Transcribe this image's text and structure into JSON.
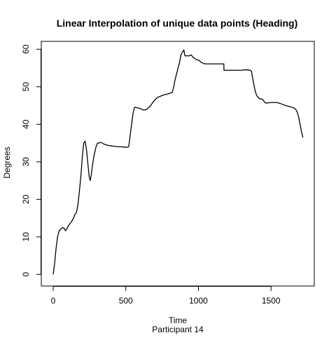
{
  "chart_data": {
    "type": "line",
    "title": "Linear Interpolation of unique data points (Heading)",
    "xlabel": "Time",
    "ylabel": "Degrees",
    "subtitle": "Participant  14",
    "xlim": [
      -82,
      1798
    ],
    "ylim": [
      -3.1,
      62.1
    ],
    "x_ticks": [
      0,
      500,
      1000,
      1500
    ],
    "y_ticks": [
      0,
      10,
      20,
      30,
      40,
      50,
      60
    ],
    "grid": false,
    "legend": "none",
    "line_color": "#000000",
    "series": [
      {
        "x": [
          0,
          10,
          20,
          30,
          40,
          55,
          65,
          75,
          85,
          95,
          105,
          115,
          125,
          140,
          150,
          160,
          170,
          180,
          190,
          200,
          210,
          220,
          230,
          240,
          248,
          255,
          262,
          270,
          278,
          286,
          295,
          305,
          315,
          330,
          345,
          360,
          375,
          390,
          410,
          430,
          450,
          470,
          490,
          510,
          520,
          530,
          540,
          550,
          560,
          570,
          580,
          590,
          600,
          620,
          640,
          660,
          680,
          700,
          720,
          740,
          760,
          780,
          800,
          820,
          830,
          840,
          850,
          860,
          870,
          880,
          890,
          900,
          905,
          910,
          920,
          930,
          940,
          950,
          960,
          975,
          990,
          1005,
          1020,
          1035,
          1050,
          1100,
          1150,
          1175,
          1176,
          1250,
          1300,
          1310,
          1340,
          1355,
          1365,
          1370,
          1380,
          1390,
          1400,
          1410,
          1420,
          1440,
          1450,
          1460,
          1480,
          1500,
          1520,
          1540,
          1560,
          1580,
          1600,
          1620,
          1640,
          1660,
          1670,
          1680,
          1690,
          1700,
          1710,
          1720
        ],
        "y": [
          0,
          3,
          7,
          10,
          11.5,
          12.2,
          12.5,
          12.3,
          11.6,
          12.2,
          13,
          13.5,
          14,
          15,
          16,
          16.5,
          18.5,
          22,
          26,
          31,
          35,
          35.5,
          33,
          29,
          26,
          25,
          26.5,
          29,
          31,
          32.5,
          34,
          35,
          35,
          35.2,
          34.8,
          34.6,
          34.4,
          34.3,
          34.2,
          34.1,
          34,
          34,
          33.9,
          33.9,
          34,
          37,
          40,
          43,
          44.5,
          44.5,
          44.4,
          44.3,
          44.2,
          43.8,
          43.9,
          44.5,
          45.5,
          46.5,
          47.2,
          47.5,
          47.8,
          48,
          48.2,
          48.5,
          50,
          52,
          53.5,
          55,
          56.5,
          58.5,
          59.3,
          59.8,
          58.5,
          58.2,
          58.3,
          58.2,
          58.3,
          58.5,
          58,
          57.5,
          57.2,
          57,
          56.5,
          56.2,
          56.1,
          56.1,
          56.1,
          56.1,
          54.4,
          54.4,
          54.4,
          54.5,
          54.5,
          54.4,
          54.2,
          53,
          51,
          49,
          47.8,
          47.2,
          46.8,
          46.7,
          46.2,
          45.7,
          45.7,
          45.8,
          45.8,
          45.8,
          45.6,
          45.3,
          45,
          44.8,
          44.6,
          44.3,
          44,
          43.3,
          42,
          40,
          38,
          36.5
        ]
      }
    ]
  }
}
